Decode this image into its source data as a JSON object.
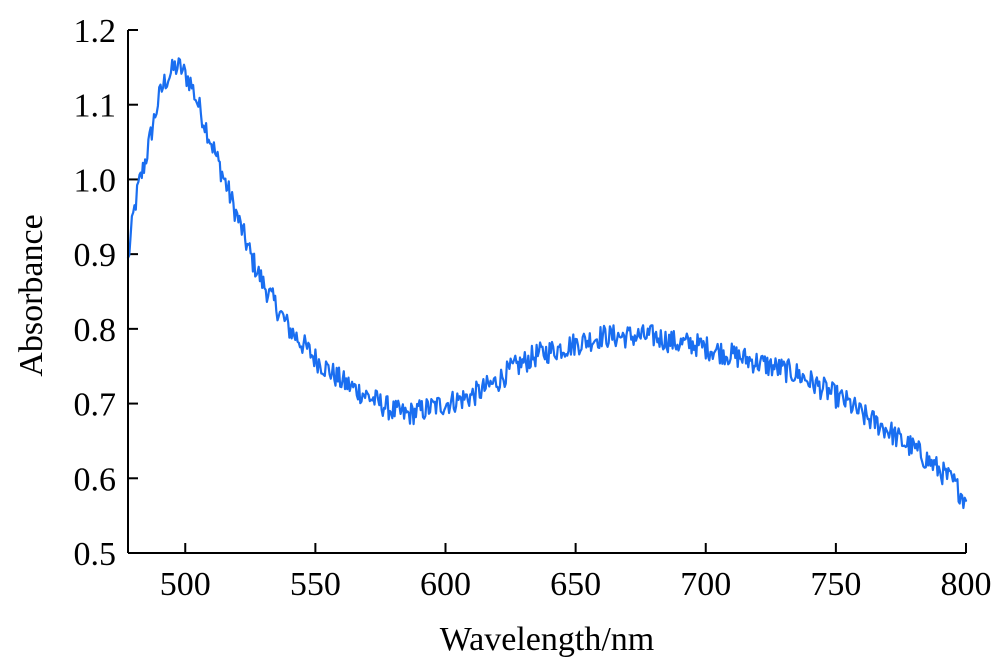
{
  "chart_data": {
    "type": "line",
    "title": "",
    "xlabel": "Wavelength/nm",
    "ylabel": "Absorbance",
    "xlim": [
      478,
      800
    ],
    "ylim": [
      0.5,
      1.2
    ],
    "x_ticks": [
      500,
      550,
      600,
      650,
      700,
      750,
      800
    ],
    "y_ticks": [
      0.5,
      0.6,
      0.7,
      0.8,
      0.9,
      1.0,
      1.1,
      1.2
    ],
    "x_tick_labels": [
      "500",
      "550",
      "600",
      "650",
      "700",
      "750",
      "800"
    ],
    "y_tick_labels": [
      "0.5",
      "0.6",
      "0.7",
      "0.8",
      "0.9",
      "1.0",
      "1.1",
      "1.2"
    ],
    "grid": false,
    "legend": "none",
    "series": [
      {
        "color": "#1a6ef0",
        "x": [
          478,
          480,
          482,
          485,
          488,
          490,
          492,
          494,
          496,
          498,
          500,
          502,
          504,
          506,
          508,
          510,
          512,
          515,
          518,
          520,
          523,
          526,
          530,
          535,
          540,
          545,
          550,
          555,
          560,
          565,
          570,
          575,
          580,
          585,
          590,
          595,
          600,
          605,
          610,
          615,
          620,
          625,
          630,
          635,
          640,
          645,
          650,
          655,
          660,
          665,
          670,
          675,
          680,
          685,
          690,
          695,
          700,
          705,
          710,
          715,
          720,
          725,
          730,
          735,
          740,
          745,
          750,
          755,
          760,
          765,
          770,
          775,
          780,
          785,
          790,
          795,
          798,
          800
        ],
        "y": [
          0.89,
          0.95,
          0.99,
          1.03,
          1.08,
          1.11,
          1.13,
          1.14,
          1.15,
          1.15,
          1.14,
          1.13,
          1.11,
          1.09,
          1.07,
          1.05,
          1.03,
          1.0,
          0.97,
          0.95,
          0.92,
          0.89,
          0.86,
          0.83,
          0.8,
          0.78,
          0.76,
          0.745,
          0.73,
          0.72,
          0.71,
          0.7,
          0.69,
          0.685,
          0.69,
          0.695,
          0.7,
          0.705,
          0.71,
          0.72,
          0.73,
          0.745,
          0.755,
          0.765,
          0.77,
          0.775,
          0.78,
          0.785,
          0.79,
          0.79,
          0.79,
          0.79,
          0.79,
          0.785,
          0.78,
          0.78,
          0.775,
          0.77,
          0.765,
          0.76,
          0.755,
          0.75,
          0.745,
          0.74,
          0.73,
          0.72,
          0.71,
          0.7,
          0.685,
          0.675,
          0.665,
          0.65,
          0.64,
          0.625,
          0.61,
          0.595,
          0.58,
          0.57
        ]
      }
    ]
  }
}
